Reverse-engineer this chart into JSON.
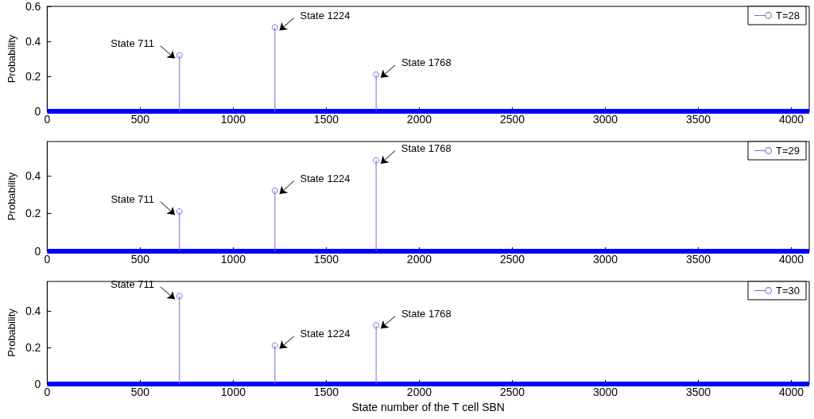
{
  "chart_data": [
    {
      "type": "lollipop",
      "ylabel": "Probability",
      "xlim": [
        0,
        4096
      ],
      "xticks": [
        0,
        500,
        1000,
        1500,
        2000,
        2500,
        3000,
        3500,
        4000
      ],
      "ylim": [
        0,
        0.6
      ],
      "yticks": [
        0,
        0.2,
        0.4,
        0.6
      ],
      "legend": "top right",
      "grid": false,
      "marker": "circle",
      "series": [
        {
          "name": "T=28",
          "color": "#7070d8",
          "x": [
            711,
            1224,
            1768
          ],
          "values": [
            0.32,
            0.48,
            0.21
          ]
        },
        {
          "type": "line",
          "color": "#0000ff",
          "marker": "none",
          "x": [
            0,
            4096
          ],
          "values": [
            0,
            0
          ]
        }
      ],
      "annotations": [
        {
          "text": "State 711",
          "x": 711,
          "y": 0.32
        },
        {
          "text": "State 1224",
          "x": 1224,
          "y": 0.48
        },
        {
          "text": "State 1768",
          "x": 1768,
          "y": 0.21
        }
      ]
    },
    {
      "type": "lollipop",
      "ylabel": "Probability",
      "xlim": [
        0,
        4096
      ],
      "xticks": [
        0,
        500,
        1000,
        1500,
        2000,
        2500,
        3000,
        3500,
        4000
      ],
      "ylim": [
        0,
        0.58
      ],
      "yticks": [
        0,
        0.2,
        0.4
      ],
      "legend": "top right",
      "grid": false,
      "marker": "circle",
      "series": [
        {
          "name": "T=29",
          "color": "#7070d8",
          "x": [
            711,
            1224,
            1768
          ],
          "values": [
            0.21,
            0.32,
            0.48
          ]
        },
        {
          "type": "line",
          "color": "#0000ff",
          "marker": "none",
          "x": [
            0,
            4096
          ],
          "values": [
            0,
            0
          ]
        }
      ],
      "annotations": [
        {
          "text": "State 711",
          "x": 711,
          "y": 0.21
        },
        {
          "text": "State 1224",
          "x": 1224,
          "y": 0.32
        },
        {
          "text": "State 1768",
          "x": 1768,
          "y": 0.48
        }
      ]
    },
    {
      "type": "lollipop",
      "xlabel": "State number of the T cell SBN",
      "ylabel": "Probability",
      "xlim": [
        0,
        4096
      ],
      "xticks": [
        0,
        500,
        1000,
        1500,
        2000,
        2500,
        3000,
        3500,
        4000
      ],
      "ylim": [
        0,
        0.56
      ],
      "yticks": [
        0,
        0.2,
        0.4
      ],
      "legend": "top right",
      "grid": false,
      "marker": "circle",
      "series": [
        {
          "name": "T=30",
          "color": "#7070d8",
          "x": [
            711,
            1224,
            1768
          ],
          "values": [
            0.48,
            0.21,
            0.32
          ]
        },
        {
          "type": "line",
          "color": "#0000ff",
          "marker": "none",
          "x": [
            0,
            4096
          ],
          "values": [
            0,
            0
          ]
        }
      ],
      "annotations": [
        {
          "text": "State 711",
          "x": 711,
          "y": 0.48
        },
        {
          "text": "State 1224",
          "x": 1224,
          "y": 0.21
        },
        {
          "text": "State 1768",
          "x": 1768,
          "y": 0.32
        }
      ]
    }
  ]
}
